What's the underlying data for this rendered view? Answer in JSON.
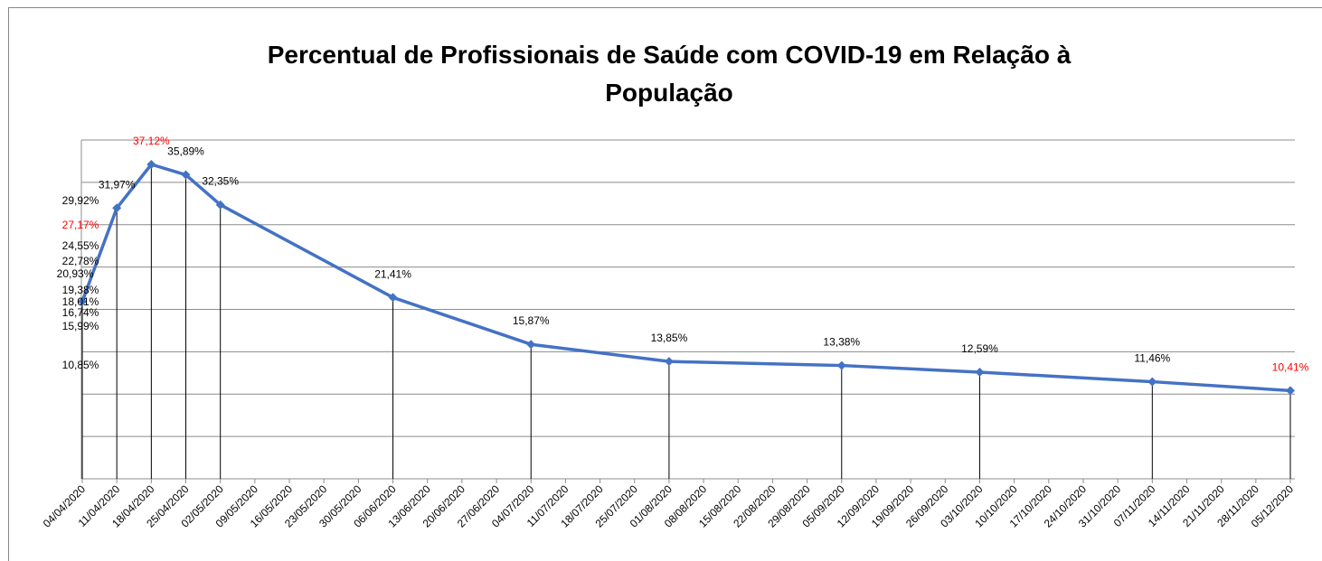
{
  "chart_data": {
    "type": "line",
    "title": [
      "Percentual  de Profissionais de Saúde com COVID-19 em Relação à",
      "População"
    ],
    "x": [
      "04/04/2020",
      "11/04/2020",
      "18/04/2020",
      "25/04/2020",
      "02/05/2020",
      "06/06/2020",
      "04/07/2020",
      "01/08/2020",
      "05/09/2020",
      "03/10/2020",
      "07/11/2020",
      "05/12/2020"
    ],
    "series": [
      {
        "name": "Percentual",
        "color": "#4472c4",
        "values": [
          20.93,
          31.97,
          37.12,
          35.89,
          32.35,
          21.41,
          15.87,
          13.85,
          13.38,
          12.59,
          11.46,
          10.41
        ],
        "value_labels": [
          "20,93%",
          "31,97%",
          "37,12%",
          "35,89%",
          "32,35%",
          "21,41%",
          "15,87%",
          "13,85%",
          "13,38%",
          "12,59%",
          "11,46%",
          "10,41%"
        ],
        "value_label_colors": [
          "#000000",
          "#000000",
          "#ff0000",
          "#000000",
          "#000000",
          "#000000",
          "#000000",
          "#000000",
          "#000000",
          "#000000",
          "#000000",
          "#ff0000"
        ]
      }
    ],
    "annotations": [
      {
        "text": "29,92%",
        "color": "#000000"
      },
      {
        "text": "27,17%",
        "color": "#ff0000"
      },
      {
        "text": "24,55%",
        "color": "#000000"
      },
      {
        "text": "22,78%",
        "color": "#000000"
      },
      {
        "text": "19,38%",
        "color": "#000000"
      },
      {
        "text": "18,01%",
        "color": "#000000"
      },
      {
        "text": "16,74%",
        "color": "#000000"
      },
      {
        "text": "15,99%",
        "color": "#000000"
      },
      {
        "text": "10,85%",
        "color": "#000000"
      }
    ],
    "xlim": [
      "04/04/2020",
      "05/12/2020"
    ],
    "xticks": [
      "04/04/2020",
      "11/04/2020",
      "18/04/2020",
      "25/04/2020",
      "02/05/2020",
      "09/05/2020",
      "16/05/2020",
      "23/05/2020",
      "30/05/2020",
      "06/06/2020",
      "13/06/2020",
      "20/06/2020",
      "27/06/2020",
      "04/07/2020",
      "11/07/2020",
      "18/07/2020",
      "25/07/2020",
      "01/08/2020",
      "08/08/2020",
      "15/08/2020",
      "22/08/2020",
      "29/08/2020",
      "05/09/2020",
      "12/09/2020",
      "19/09/2020",
      "26/09/2020",
      "03/10/2020",
      "10/10/2020",
      "17/10/2020",
      "24/10/2020",
      "31/10/2020",
      "07/11/2020",
      "14/11/2020",
      "21/11/2020",
      "28/11/2020",
      "05/12/2020"
    ],
    "ylim": [
      0,
      40
    ],
    "yticks": [
      0,
      5,
      10,
      15,
      20,
      25,
      30,
      35,
      40
    ],
    "grid": true,
    "drop_lines": true
  }
}
